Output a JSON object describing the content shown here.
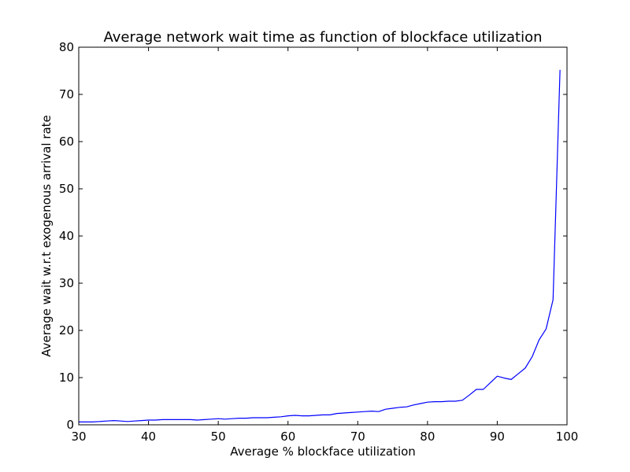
{
  "chart_data": {
    "type": "line",
    "title": "Average network wait time as function of blockface utilization",
    "xlabel": "Average % blockface utilization",
    "ylabel": "Average wait w.r.t exogenous arrival rate",
    "xlim": [
      30,
      100
    ],
    "ylim": [
      0,
      80
    ],
    "xticks": [
      30,
      40,
      50,
      60,
      70,
      80,
      90,
      100
    ],
    "yticks": [
      0,
      10,
      20,
      30,
      40,
      50,
      60,
      70,
      80
    ],
    "grid": false,
    "series": [
      {
        "color": "#0000ff",
        "x": [
          30,
          31,
          32,
          33,
          34,
          35,
          36,
          37,
          38,
          39,
          40,
          41,
          42,
          43,
          44,
          45,
          46,
          47,
          48,
          49,
          50,
          51,
          52,
          53,
          54,
          55,
          56,
          57,
          58,
          59,
          60,
          61,
          62,
          63,
          64,
          65,
          66,
          67,
          68,
          69,
          70,
          71,
          72,
          73,
          74,
          75,
          76,
          77,
          78,
          79,
          80,
          81,
          82,
          83,
          84,
          85,
          86,
          87,
          88,
          89,
          90,
          91,
          92,
          93,
          94,
          95,
          96,
          97,
          98,
          99
        ],
        "y": [
          0.6,
          0.6,
          0.6,
          0.7,
          0.8,
          0.9,
          0.8,
          0.7,
          0.8,
          0.9,
          1.0,
          1.0,
          1.1,
          1.1,
          1.1,
          1.1,
          1.1,
          1.0,
          1.1,
          1.2,
          1.3,
          1.2,
          1.3,
          1.4,
          1.4,
          1.5,
          1.5,
          1.5,
          1.6,
          1.7,
          1.9,
          2.0,
          1.9,
          1.9,
          2.0,
          2.1,
          2.1,
          2.4,
          2.5,
          2.6,
          2.7,
          2.8,
          2.9,
          2.8,
          3.3,
          3.5,
          3.7,
          3.8,
          4.2,
          4.5,
          4.8,
          4.9,
          4.9,
          5.0,
          5.0,
          5.2,
          6.3,
          7.5,
          7.5,
          8.9,
          10.3,
          9.9,
          9.6,
          10.8,
          12.0,
          14.4,
          18.0,
          20.3,
          26.5,
          75.2
        ]
      }
    ]
  }
}
